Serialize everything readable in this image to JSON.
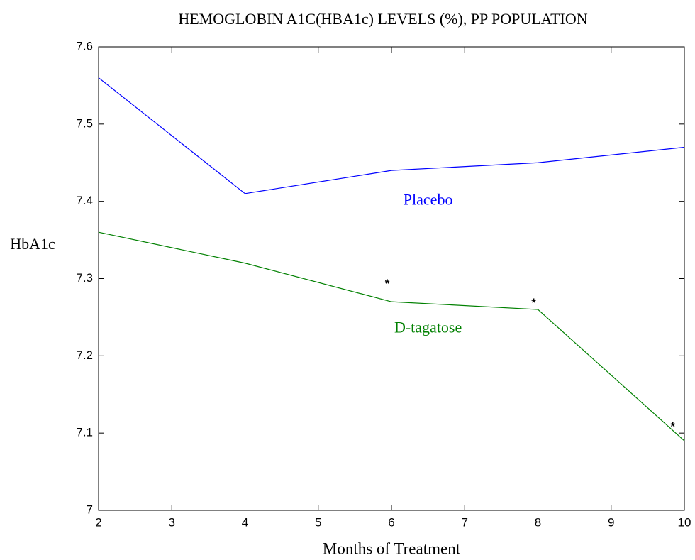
{
  "chart_data": {
    "type": "line",
    "title": "HEMOGLOBIN A1C(HBA1c) LEVELS (%), PP POPULATION",
    "x_label": "Months of Treatment",
    "y_label": "HbA1c",
    "x": [
      2,
      4,
      6,
      8,
      10
    ],
    "series": [
      {
        "name": "Placebo",
        "color": "#0000ff",
        "values": [
          7.56,
          7.41,
          7.44,
          7.45,
          7.47
        ]
      },
      {
        "name": "D-tagatose",
        "color": "#008000",
        "values": [
          7.36,
          7.32,
          7.27,
          7.26,
          7.09
        ]
      }
    ],
    "annotations": [
      "*",
      "*",
      "*"
    ],
    "xlim": [
      2,
      10
    ],
    "xticks": [
      2,
      3,
      4,
      5,
      6,
      7,
      8,
      9,
      10
    ],
    "ylim": [
      7,
      7.6
    ],
    "yticks": [
      7,
      7.1,
      7.2,
      7.3,
      7.4,
      7.5,
      7.6
    ],
    "grid": false
  }
}
